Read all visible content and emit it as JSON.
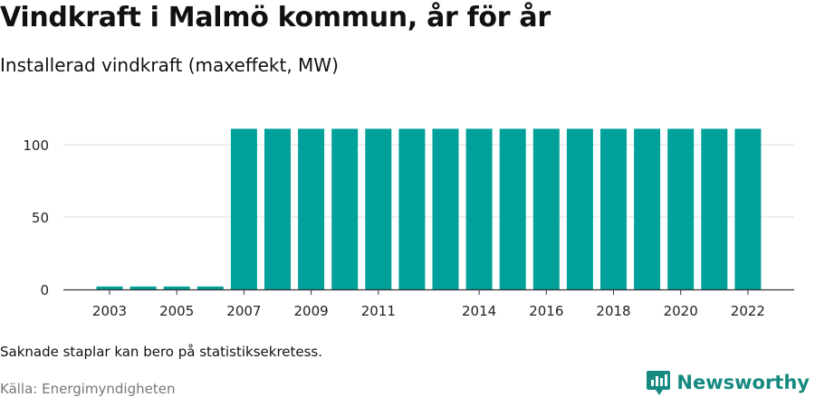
{
  "title": "Vindkraft i Malmö kommun, år för år",
  "subtitle": "Installerad vindkraft (maxeffekt, MW)",
  "note": "Saknade staplar kan bero på statistiksekretess.",
  "source": "Källa: Energimyndigheten",
  "brand": {
    "name": "Newsworthy",
    "icon": "newsworthy-logo-icon",
    "color": "#168a80"
  },
  "chart_data": {
    "type": "bar",
    "categories": [
      "2003",
      "2004",
      "2005",
      "2006",
      "2007",
      "2008",
      "2009",
      "2010",
      "2011",
      "2012",
      "2013",
      "2014",
      "2015",
      "2016",
      "2017",
      "2018",
      "2019",
      "2020",
      "2021",
      "2022"
    ],
    "values": [
      2,
      2,
      2,
      2,
      111,
      111,
      111,
      111,
      111,
      111,
      111,
      111,
      111,
      111,
      111,
      111,
      111,
      111,
      111,
      111
    ],
    "xtick_labels": [
      "2003",
      "2005",
      "2007",
      "2009",
      "2011",
      "2014",
      "2016",
      "2018",
      "2020",
      "2022"
    ],
    "yticks": [
      0,
      50,
      100
    ],
    "ylim": [
      0,
      110
    ],
    "grid": true,
    "bar_color": "#00a19a",
    "xlabel": "",
    "ylabel": ""
  }
}
